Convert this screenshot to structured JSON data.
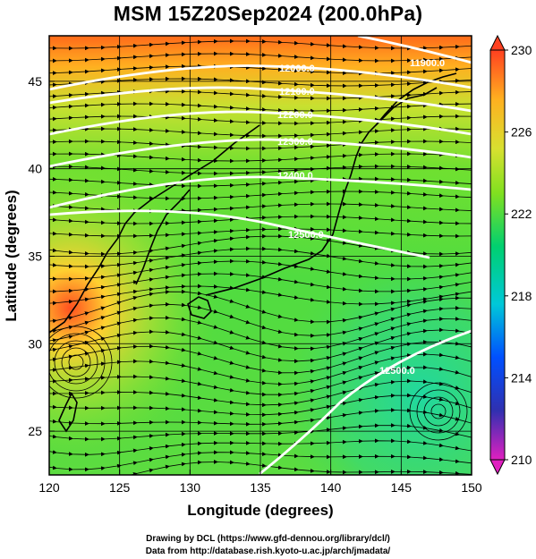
{
  "title": "MSM 15Z20Sep2024 (200.0hPa)",
  "xaxis": {
    "label": "Longitude (degrees)",
    "range": [
      120,
      150
    ],
    "ticks": [
      "120",
      "125",
      "130",
      "135",
      "140",
      "145",
      "150"
    ]
  },
  "yaxis": {
    "label": "Latitude  (degrees)",
    "range": [
      22.5,
      47.6
    ],
    "ticks": [
      "25",
      "30",
      "35",
      "40",
      "45"
    ]
  },
  "colorbar": {
    "min": 210,
    "max": 230,
    "tick_labels": [
      "210",
      "214",
      "218",
      "222",
      "226",
      "230"
    ],
    "stops": [
      "#e020c0",
      "#3030b0",
      "#0060ff",
      "#00c8d8",
      "#00d070",
      "#80e020",
      "#d8e030",
      "#ffb020",
      "#ff4020"
    ]
  },
  "contours": [
    {
      "label": "11900.0"
    },
    {
      "label": "12000.0"
    },
    {
      "label": "12100.0"
    },
    {
      "label": "12200.0"
    },
    {
      "label": "12300.0"
    },
    {
      "label": "12400.0"
    },
    {
      "label": "12500.0"
    },
    {
      "label": "12500.0"
    }
  ],
  "credits": {
    "line1": "Drawing by DCL (https://www.gfd-dennou.org/library/dcl/)",
    "line2": "Data from http://database.rish.kyoto-u.ac.jp/arch/jmadata/"
  }
}
